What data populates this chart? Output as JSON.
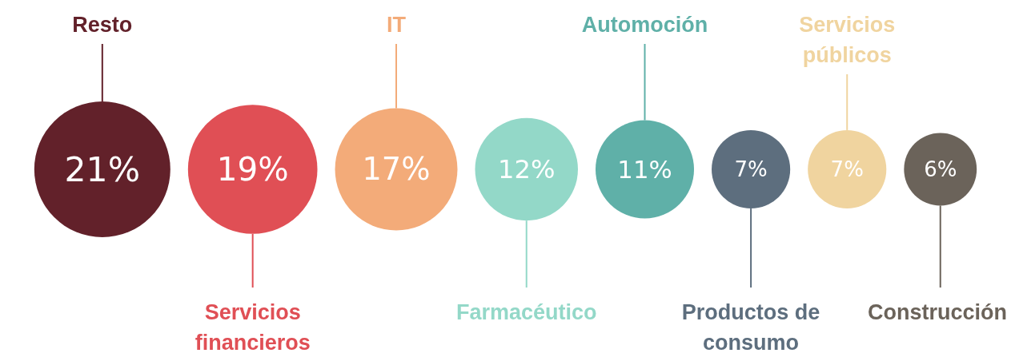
{
  "chart_data": {
    "type": "other",
    "categories": [
      "Resto",
      "Servicios financieros",
      "IT",
      "Farmacéutico",
      "Automoción",
      "Productos de consumo",
      "Servicios públicos",
      "Construcción"
    ],
    "values": [
      21,
      19,
      17,
      12,
      11,
      7,
      7,
      6
    ],
    "colors": [
      "#62212a",
      "#e04f55",
      "#f3ab79",
      "#93d8c8",
      "#5fb0a8",
      "#5d6e7e",
      "#f0d49f",
      "#6b635a"
    ],
    "value_labels": [
      "21%",
      "19%",
      "17%",
      "12%",
      "11%",
      "7%",
      "7%",
      "6%"
    ]
  }
}
